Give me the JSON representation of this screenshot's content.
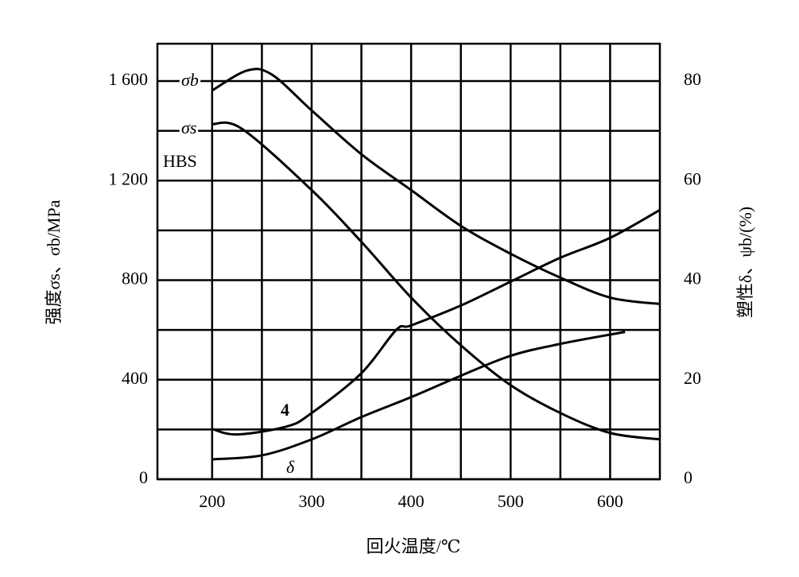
{
  "chart_data": {
    "type": "line",
    "xlabel": "回火温度/℃",
    "ylabel": "强度σs、σb/MPa",
    "y2label": "塑性δ、ψb/(%)",
    "xlim": [
      145,
      650
    ],
    "xticks": [
      200,
      300,
      400,
      500,
      600
    ],
    "minor_xticks": [
      250,
      350,
      450,
      550
    ],
    "ylim": [
      0,
      1750
    ],
    "yticks": [
      0,
      400,
      800,
      {
        "value": 1200,
        "label": "1 200"
      },
      {
        "value": 1600,
        "label": "1 600"
      }
    ],
    "minor_yticks": [
      200,
      600,
      1000,
      1400
    ],
    "y2lim": [
      0,
      87.5
    ],
    "y2ticks": [
      0,
      20,
      40,
      60,
      80
    ],
    "grid": true,
    "annotations": [
      "HBS"
    ],
    "series": [
      {
        "name": "σb",
        "color": "#000000",
        "x": [
          200,
          235,
          260,
          300,
          350,
          400,
          450,
          500,
          550,
          600,
          650
        ],
        "values": [
          1562,
          1642,
          1626,
          1482,
          1306,
          1162,
          1018,
          906,
          810,
          730,
          704
        ]
      },
      {
        "name": "σs",
        "color": "#000000",
        "x": [
          200,
          230,
          300,
          350,
          400,
          450,
          500,
          550,
          600,
          650
        ],
        "values": [
          1427,
          1408,
          1162,
          954,
          730,
          538,
          378,
          266,
          186,
          160
        ]
      },
      {
        "name": "4",
        "color": "#000000",
        "axis": "y2",
        "x": [
          200,
          225,
          275,
          300,
          350,
          385,
          400,
          450,
          500,
          550,
          600,
          650
        ],
        "values": [
          10.1,
          9,
          10.6,
          13.3,
          21.3,
          30,
          30.9,
          34.9,
          39.7,
          44.5,
          48.5,
          54.1
        ]
      },
      {
        "name": "δ",
        "color": "#000000",
        "axis": "y2",
        "x": [
          200,
          250,
          300,
          350,
          400,
          450,
          500,
          550,
          615
        ],
        "values": [
          4,
          4.8,
          8,
          12.5,
          16.5,
          20.8,
          24.8,
          27.2,
          29.6
        ]
      }
    ]
  }
}
